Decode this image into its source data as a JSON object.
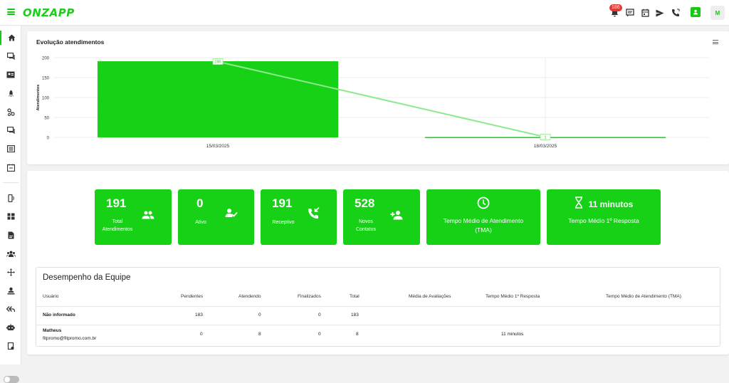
{
  "brand": {
    "name": "ONZAPP",
    "accent": "#16d116"
  },
  "topbar": {
    "notification_count": "186",
    "avatar_initial": "M"
  },
  "chart": {
    "title": "Evolução atendimentos"
  },
  "chart_data": {
    "type": "bar",
    "categories": [
      "15/03/2025",
      "18/03/2025"
    ],
    "series": [
      {
        "values": [
          191,
          1
        ],
        "kind": "bar",
        "color": "#16d116"
      },
      {
        "values": [
          190,
          1
        ],
        "kind": "line",
        "color": "#8ee88e",
        "data_labels": [
          "190",
          "1"
        ]
      }
    ],
    "ylabel": "Atendimentos",
    "yticks": [
      0,
      50,
      100,
      150,
      200
    ],
    "ylim": [
      0,
      200
    ],
    "grid": true
  },
  "stats": [
    {
      "value": "191",
      "label": "Total Atendimentos",
      "icon": "group-icon"
    },
    {
      "value": "0",
      "label": "Ativo",
      "icon": "person-check-icon"
    },
    {
      "value": "191",
      "label": "Receptivo",
      "icon": "phone-incoming-icon"
    },
    {
      "value": "528",
      "label": "Novos Contatos",
      "icon": "person-add-icon"
    },
    {
      "value": "",
      "label": "Tempo Médio de Atendimento (TMA)",
      "icon": "clock-icon"
    },
    {
      "value": "11 minutos",
      "label": "Tempo Médio 1º Resposta",
      "icon": "hourglass-icon"
    }
  ],
  "team": {
    "title": "Desempenho da Equipe",
    "columns": [
      "Usuário",
      "Pendentes",
      "Atendendo",
      "Finalizados",
      "Total",
      "Média de Avaliações",
      "Tempo Médio 1º Resposta",
      "Tempo Médio de Atendimento (TMA)"
    ],
    "rows": [
      {
        "user": "Não informado",
        "email": "",
        "pendentes": "183",
        "atendendo": "0",
        "finalizados": "0",
        "total": "183",
        "avaliacoes": "",
        "primeira_resposta": "",
        "tma": ""
      },
      {
        "user": "Matheus",
        "email": "fitpromo@fitpromo.com.br",
        "pendentes": "0",
        "atendendo": "8",
        "finalizados": "0",
        "total": "8",
        "avaliacoes": "",
        "primeira_resposta": "11 minutos",
        "tma": ""
      }
    ]
  }
}
